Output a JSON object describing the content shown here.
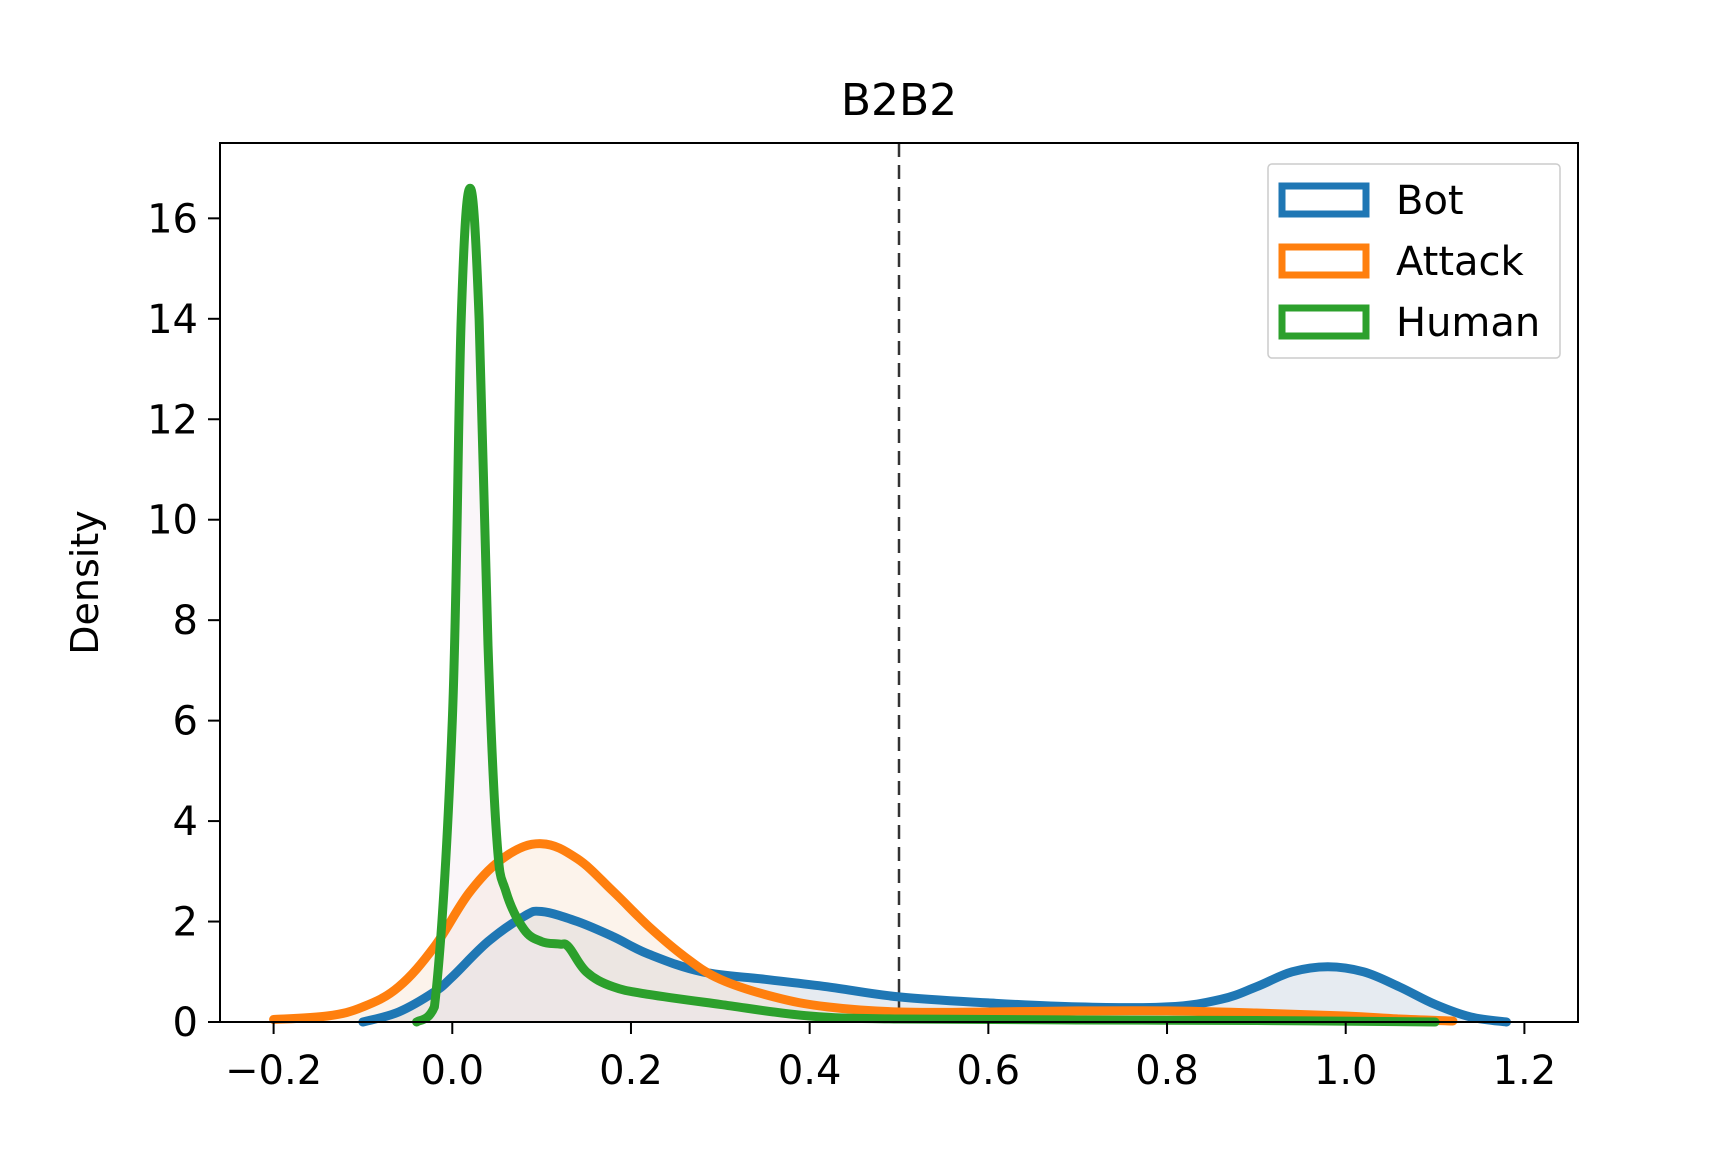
{
  "chart_data": {
    "type": "line",
    "subtype": "kde-density",
    "title": "B2B2",
    "xlabel": "",
    "ylabel": "Density",
    "xlim": [
      -0.26,
      1.26
    ],
    "ylim": [
      0,
      17.5
    ],
    "xticks": [
      -0.2,
      0.0,
      0.2,
      0.4,
      0.6,
      0.8,
      1.0,
      1.2
    ],
    "xtick_labels": [
      "−0.2",
      "0.0",
      "0.2",
      "0.4",
      "0.6",
      "0.8",
      "1.0",
      "1.2"
    ],
    "yticks": [
      0,
      2,
      4,
      6,
      8,
      10,
      12,
      14,
      16
    ],
    "ytick_labels": [
      "0",
      "2",
      "4",
      "6",
      "8",
      "10",
      "12",
      "14",
      "16"
    ],
    "threshold_line": {
      "x": 0.5,
      "style": "dashed",
      "color": "#333333"
    },
    "legend_position": "top-right",
    "grid": false,
    "series": [
      {
        "name": "Bot",
        "color": "#1f77b4",
        "fill": "#b8c6d6",
        "x": [
          -0.1,
          -0.06,
          -0.02,
          0.0,
          0.04,
          0.08,
          0.1,
          0.14,
          0.18,
          0.22,
          0.28,
          0.35,
          0.42,
          0.5,
          0.6,
          0.7,
          0.8,
          0.86,
          0.9,
          0.94,
          0.98,
          1.02,
          1.06,
          1.1,
          1.14,
          1.18
        ],
        "values": [
          0.0,
          0.2,
          0.6,
          0.9,
          1.6,
          2.1,
          2.2,
          2.0,
          1.7,
          1.35,
          1.0,
          0.85,
          0.7,
          0.5,
          0.38,
          0.3,
          0.3,
          0.45,
          0.7,
          1.0,
          1.1,
          1.0,
          0.7,
          0.35,
          0.1,
          0.0
        ]
      },
      {
        "name": "Attack",
        "color": "#ff7f0e",
        "fill": "#f7dcc6",
        "x": [
          -0.2,
          -0.14,
          -0.1,
          -0.06,
          -0.02,
          0.02,
          0.06,
          0.1,
          0.14,
          0.18,
          0.22,
          0.26,
          0.3,
          0.36,
          0.42,
          0.5,
          0.6,
          0.7,
          0.8,
          0.9,
          1.0,
          1.06,
          1.12
        ],
        "values": [
          0.05,
          0.12,
          0.3,
          0.7,
          1.5,
          2.6,
          3.3,
          3.55,
          3.25,
          2.6,
          1.9,
          1.3,
          0.85,
          0.5,
          0.3,
          0.2,
          0.2,
          0.22,
          0.22,
          0.18,
          0.12,
          0.06,
          0.02
        ]
      },
      {
        "name": "Human",
        "color": "#2ca02c",
        "fill": "#f1e4ee",
        "x": [
          -0.04,
          -0.02,
          0.0,
          0.01,
          0.02,
          0.03,
          0.04,
          0.05,
          0.06,
          0.08,
          0.1,
          0.12,
          0.13,
          0.15,
          0.18,
          0.22,
          0.3,
          0.4,
          0.5,
          0.7,
          0.9,
          1.1
        ],
        "values": [
          0.0,
          0.3,
          6.0,
          14.0,
          16.6,
          14.0,
          7.5,
          3.6,
          2.6,
          1.85,
          1.6,
          1.55,
          1.5,
          1.0,
          0.7,
          0.55,
          0.35,
          0.12,
          0.06,
          0.04,
          0.03,
          0.0
        ]
      }
    ]
  }
}
